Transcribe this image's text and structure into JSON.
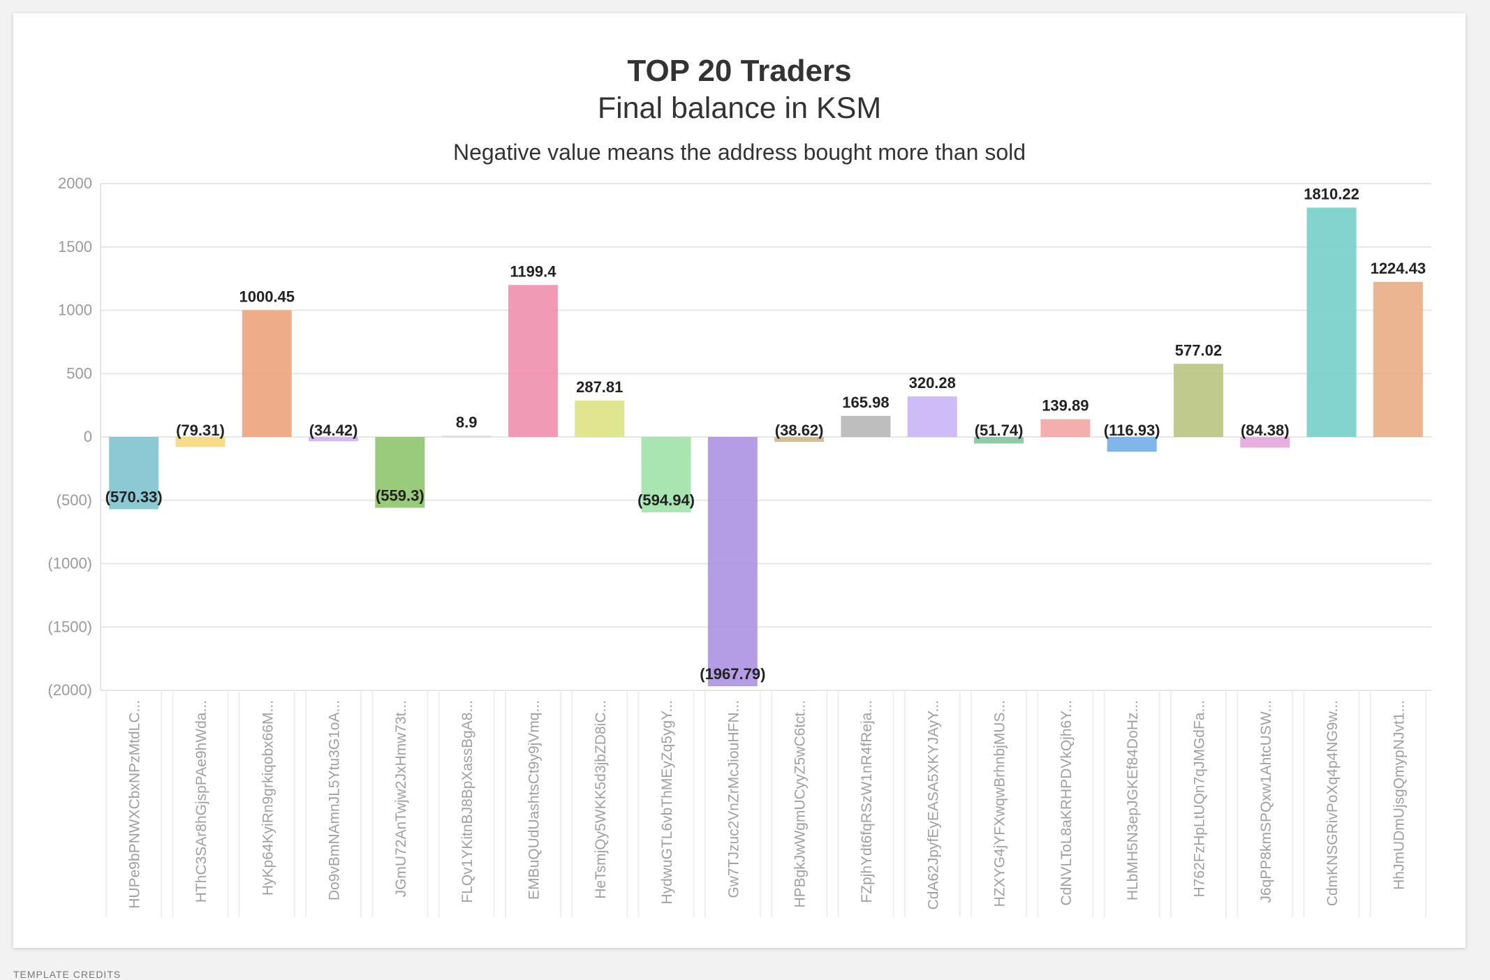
{
  "footer": {
    "credits": "TEMPLATE CREDITS"
  },
  "chart_data": {
    "type": "bar",
    "title": "TOP 20 Traders",
    "subtitle": "Final balance in KSM",
    "note": "Negative value means the address bought more than sold",
    "xlabel": "",
    "ylabel": "",
    "ylim": [
      -2000,
      2000
    ],
    "yticks": [
      2000,
      1500,
      1000,
      500,
      0,
      -500,
      -1000,
      -1500,
      -2000
    ],
    "ytick_labels": [
      "2000",
      "1500",
      "1000",
      "500",
      "0",
      "(500)",
      "(1000)",
      "(1500)",
      "(2000)"
    ],
    "grid": true,
    "legend": "none",
    "categories": [
      "HUPe9bPNWXCbxNPzMtdLC...",
      "HThC3SAr8hGjspPAe9hWda...",
      "HyKp64KyiRn9grkiqobx66M...",
      "Do9vBmNAmnJL5Ytu3G1oA...",
      "JGmU72AnTwjw2JxHmw73t...",
      "FLQv1YKitnBJ8BpXassBgA8...",
      "EMBuQUdUashtsCt9y9jVmq...",
      "HeTsmjQy5WKK5d3jbZD8iC...",
      "HydwuGTL6vbThMEyZq5ygY...",
      "Gw7TJzuc2VnZrMcJiouHFN...",
      "HPBgkJwWgmUCyyZ5wC6tct...",
      "FZpjhYdt6fqRSzW1nR4fReja...",
      "CdA62JpyfEyEASA5XKYJAyY...",
      "HZXYG4jYFXwqwBrhnbjMUS...",
      "CdNVLToL8aKRHPDVkQjh6Y...",
      "HLbMH5N3epJGKEf84DoHz...",
      "H762FzHpLtUQn7qJMGdFa...",
      "J6qPP8kmSPQxw1AhtcUSW...",
      "CdmKNSGRivPoXq4p4NG9w...",
      "HhJmUDmUjsgQmypNJvt1..."
    ],
    "values": [
      -570.33,
      -79.31,
      1000.45,
      -34.42,
      -559.3,
      8.9,
      1199.4,
      287.81,
      -594.94,
      -1967.79,
      -38.62,
      165.98,
      320.28,
      -51.74,
      139.89,
      -116.93,
      577.02,
      -84.38,
      1810.22,
      1224.43
    ],
    "value_labels": [
      "(570.33)",
      "(79.31)",
      "1000.45",
      "(34.42)",
      "(559.3)",
      "8.9",
      "1199.4",
      "287.81",
      "(594.94)",
      "(1967.79)",
      "(38.62)",
      "165.98",
      "320.28",
      "(51.74)",
      "139.89",
      "(116.93)",
      "577.02",
      "(84.38)",
      "1810.22",
      "1224.43"
    ],
    "colors": [
      "#7ec4cf",
      "#f5d77b",
      "#eda37c",
      "#cdb4ee",
      "#8fc56b",
      "#d6d6d6",
      "#ef8fae",
      "#dde383",
      "#9fe2a8",
      "#ad92e2",
      "#cdb88c",
      "#b7b7b7",
      "#c8b5f7",
      "#83c5a0",
      "#f3a5a5",
      "#72aee8",
      "#b9c47f",
      "#e4a5da",
      "#74cfc9",
      "#e8ad84"
    ]
  }
}
